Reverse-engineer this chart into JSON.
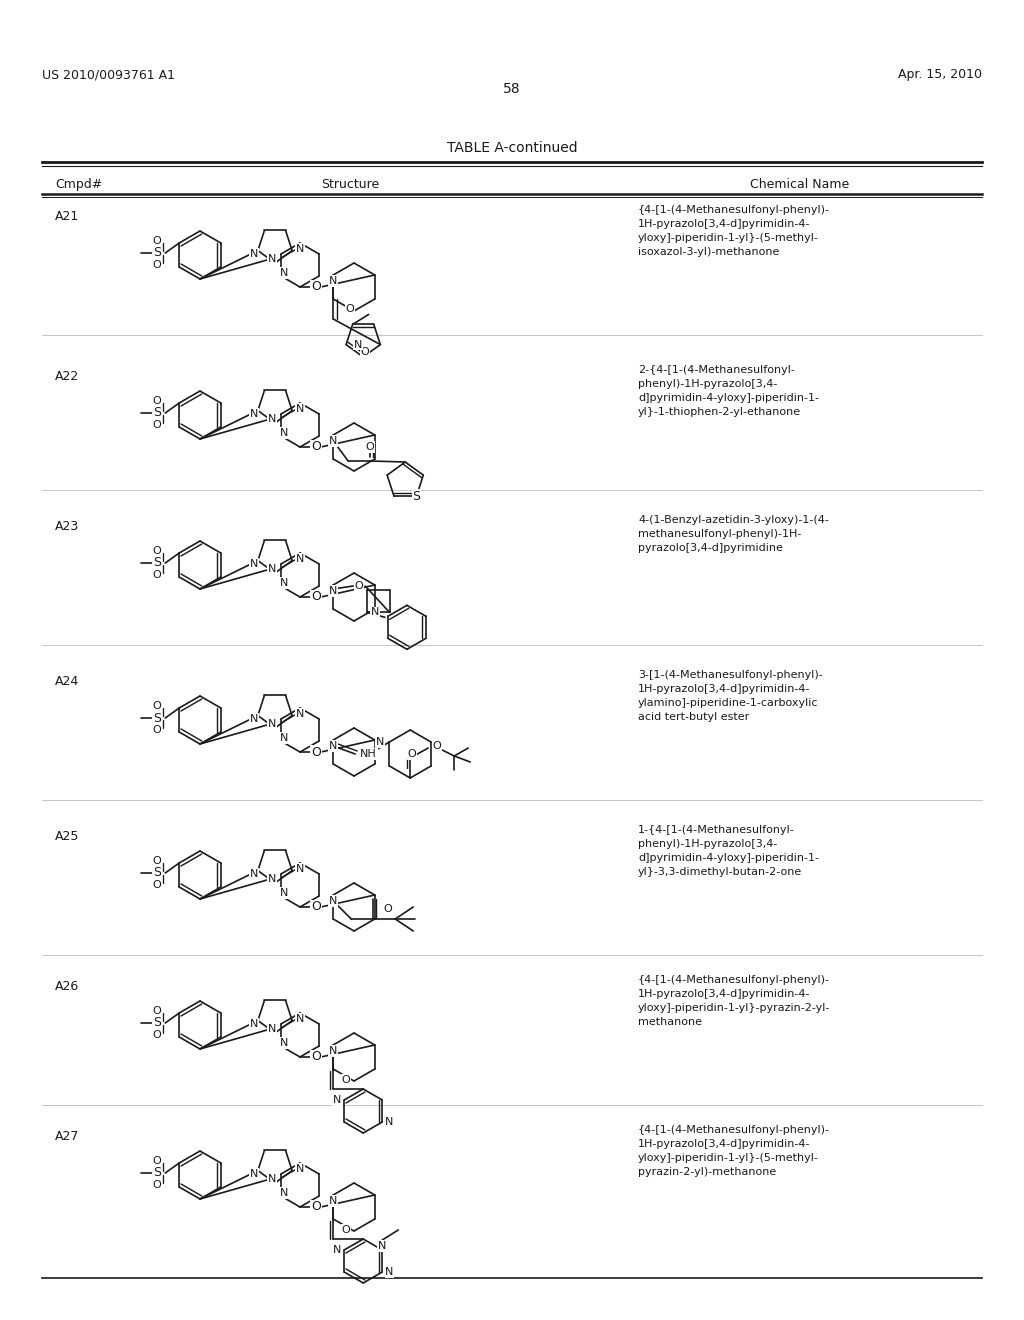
{
  "page_number": "58",
  "left_header": "US 2010/0093761 A1",
  "right_header": "Apr. 15, 2010",
  "table_title": "TABLE A-continued",
  "col1_header": "Cmpd#",
  "col2_header": "Structure",
  "col3_header": "Chemical Name",
  "background_color": "#ffffff",
  "text_color": "#000000",
  "compounds": [
    {
      "id": "A21",
      "name": "{4-[1-(4-Methanesulfonyl-phenyl)-\n1H-pyrazolo[3,4-d]pyrimidin-4-\nyloxy]-piperidin-1-yl}-(5-methyl-\nisoxazol-3-yl)-methanone"
    },
    {
      "id": "A22",
      "name": "2-{4-[1-(4-Methanesulfonyl-\nphenyl)-1H-pyrazolo[3,4-\nd]pyrimidin-4-yloxy]-piperidin-1-\nyl}-1-thiophen-2-yl-ethanone"
    },
    {
      "id": "A23",
      "name": "4-(1-Benzyl-azetidin-3-yloxy)-1-(4-\nmethanesulfonyl-phenyl)-1H-\npyrazolo[3,4-d]pyrimidine"
    },
    {
      "id": "A24",
      "name": "3-[1-(4-Methanesulfonyl-phenyl)-\n1H-pyrazolo[3,4-d]pyrimidin-4-\nylamino]-piperidine-1-carboxylic\nacid tert-butyl ester"
    },
    {
      "id": "A25",
      "name": "1-{4-[1-(4-Methanesulfonyl-\nphenyl)-1H-pyrazolo[3,4-\nd]pyrimidin-4-yloxy]-piperidin-1-\nyl}-3,3-dimethyl-butan-2-one"
    },
    {
      "id": "A26",
      "name": "{4-[1-(4-Methanesulfonyl-phenyl)-\n1H-pyrazolo[3,4-d]pyrimidin-4-\nyloxy]-piperidin-1-yl}-pyrazin-2-yl-\nmethanone"
    },
    {
      "id": "A27",
      "name": "{4-[1-(4-Methanesulfonyl-phenyl)-\n1H-pyrazolo[3,4-d]pyrimidin-4-\nyloxy]-piperidin-1-yl}-(5-methyl-\npyrazin-2-yl)-methanone"
    }
  ]
}
